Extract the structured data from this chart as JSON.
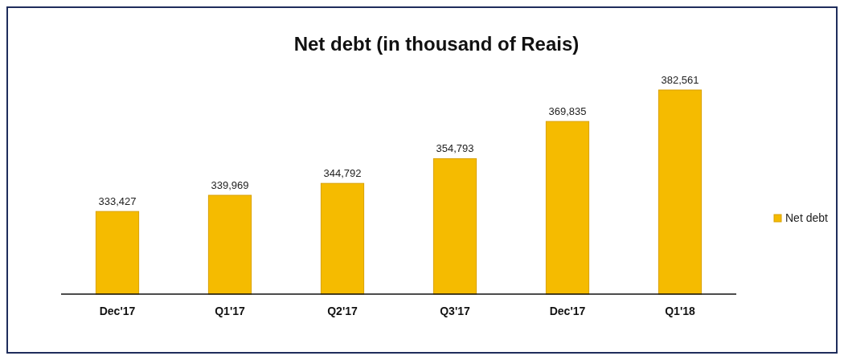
{
  "chart_data": {
    "type": "bar",
    "title": "Net debt (in thousand of Reais)",
    "categories": [
      "Dec'17",
      "Q1'17",
      "Q2'17",
      "Q3'17",
      "Dec'17",
      "Q1'18"
    ],
    "series": [
      {
        "name": "Net debt",
        "color": "#f5bb00",
        "values": [
          333427,
          339969,
          344792,
          354793,
          369835,
          382561
        ],
        "value_labels": [
          "333,427",
          "339,969",
          "344,792",
          "354,793",
          "369,835",
          "382,561"
        ]
      }
    ],
    "ylim": [
      300000,
      382561
    ],
    "tick_labels": "x",
    "legend": "right"
  }
}
